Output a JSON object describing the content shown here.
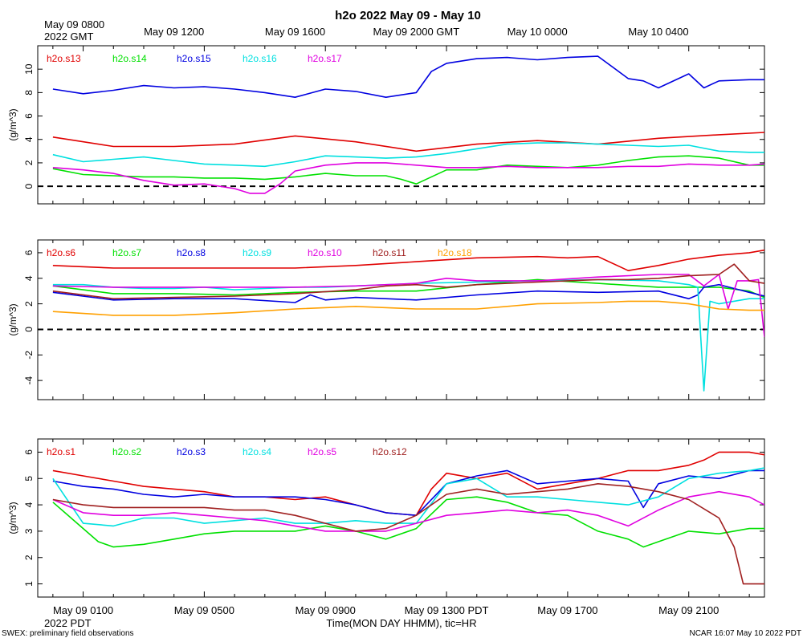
{
  "chart_data": {
    "type": "line",
    "title": "h2o 2022 May 09 - May 10",
    "xlabel": "Time(MON DAY HHMM), tic=HR",
    "footer_left": "SWEX: preliminary field observations",
    "footer_right": "NCAR 16:07 May 10 2022 PDT",
    "x_range_hours": [
      -0.5,
      23.5
    ],
    "top_axis": {
      "ticks": [
        {
          "label": "May 09 0800",
          "h": 0
        },
        {
          "label": "May 09 1200",
          "h": 4
        },
        {
          "label": "May 09 1600",
          "h": 8
        },
        {
          "label": "May 09 2000 GMT",
          "h": 12
        },
        {
          "label": "May 10 0000",
          "h": 16
        },
        {
          "label": "May 10 0400",
          "h": 20
        }
      ],
      "sublabel": "2022 GMT"
    },
    "bottom_axis": {
      "ticks": [
        {
          "label": "May 09 0100",
          "h": 1
        },
        {
          "label": "May 09 0500",
          "h": 5
        },
        {
          "label": "May 09 0900",
          "h": 9
        },
        {
          "label": "May 09 1300 PDT",
          "h": 13
        },
        {
          "label": "May 09 1700",
          "h": 17
        },
        {
          "label": "May 09 2100",
          "h": 21
        }
      ],
      "sublabel": "2022 PDT"
    },
    "panels": [
      {
        "ylabel": "(g/m^3)",
        "ylim": [
          -1.5,
          12
        ],
        "yticks": [
          0,
          2,
          4,
          6,
          8,
          10
        ],
        "zero_line": true,
        "series": [
          {
            "name": "h2o.s13",
            "color": "#e00000",
            "h": [
              0,
              2,
              4,
              6,
              8,
              10,
              12,
              14,
              16,
              18,
              20,
              22,
              23.5
            ],
            "v": [
              4.2,
              3.4,
              3.4,
              3.6,
              4.3,
              3.8,
              3.0,
              3.6,
              3.9,
              3.6,
              4.1,
              4.4,
              4.6
            ]
          },
          {
            "name": "h2o.s14",
            "color": "#00e000",
            "h": [
              0,
              1,
              2,
              3,
              4,
              5,
              6,
              7,
              8,
              9,
              10,
              11,
              11.5,
              12,
              13,
              14,
              15,
              16,
              17,
              18,
              19,
              20,
              21,
              22,
              23,
              23.5
            ],
            "v": [
              1.5,
              1.0,
              0.9,
              0.8,
              0.8,
              0.7,
              0.7,
              0.6,
              0.8,
              1.1,
              0.9,
              0.9,
              0.6,
              0.2,
              1.4,
              1.4,
              1.8,
              1.7,
              1.6,
              1.8,
              2.2,
              2.5,
              2.6,
              2.4,
              1.8,
              1.8
            ]
          },
          {
            "name": "h2o.s15",
            "color": "#0000e0",
            "h": [
              0,
              1,
              2,
              3,
              4,
              5,
              6,
              7,
              8,
              9,
              10,
              11,
              12,
              12.5,
              13,
              14,
              15,
              16,
              17,
              18,
              19,
              19.5,
              20,
              21,
              21.5,
              22,
              23,
              23.5
            ],
            "v": [
              8.3,
              7.9,
              8.2,
              8.6,
              8.4,
              8.5,
              8.3,
              8.0,
              7.6,
              8.3,
              8.1,
              7.6,
              8.0,
              9.8,
              10.5,
              10.9,
              11.0,
              10.8,
              11.0,
              11.1,
              9.2,
              9.0,
              8.4,
              9.6,
              8.4,
              9.0,
              9.1,
              9.1
            ]
          },
          {
            "name": "h2o.s16",
            "color": "#00e0e0",
            "h": [
              0,
              1,
              2,
              3,
              4,
              5,
              6,
              7,
              8,
              9,
              10,
              11,
              12,
              13,
              14,
              15,
              16,
              17,
              18,
              19,
              20,
              21,
              22,
              23,
              23.5
            ],
            "v": [
              2.7,
              2.1,
              2.3,
              2.5,
              2.2,
              1.9,
              1.8,
              1.7,
              2.1,
              2.6,
              2.5,
              2.4,
              2.5,
              2.8,
              3.2,
              3.6,
              3.7,
              3.7,
              3.6,
              3.5,
              3.4,
              3.5,
              3.0,
              2.9,
              2.9
            ]
          },
          {
            "name": "h2o.s17",
            "color": "#e000e0",
            "h": [
              0,
              1,
              2,
              3,
              4,
              5,
              6,
              6.5,
              7,
              7.5,
              8,
              9,
              10,
              11,
              12,
              13,
              14,
              15,
              16,
              17,
              18,
              19,
              20,
              21,
              22,
              23,
              23.5
            ],
            "v": [
              1.6,
              1.4,
              1.1,
              0.5,
              0.1,
              0.2,
              -0.2,
              -0.6,
              -0.6,
              0.2,
              1.3,
              1.8,
              2.0,
              2.0,
              1.8,
              1.6,
              1.6,
              1.7,
              1.6,
              1.6,
              1.6,
              1.7,
              1.7,
              1.9,
              1.8,
              1.8,
              1.9
            ]
          }
        ]
      },
      {
        "ylabel": "(g/m^3)",
        "ylim": [
          -5.5,
          7
        ],
        "yticks": [
          -4,
          -2,
          0,
          2,
          4,
          6
        ],
        "zero_line": true,
        "series": [
          {
            "name": "h2o.s6",
            "color": "#e00000",
            "h": [
              0,
              2,
              4,
              6,
              8,
              10,
              12,
              14,
              16,
              17,
              18,
              19,
              20,
              21,
              22,
              23,
              23.5
            ],
            "v": [
              5.0,
              4.8,
              4.8,
              4.8,
              4.8,
              5.0,
              5.3,
              5.6,
              5.7,
              5.6,
              5.7,
              4.6,
              5.0,
              5.5,
              5.8,
              6.0,
              6.2
            ]
          },
          {
            "name": "h2o.s7",
            "color": "#00e000",
            "h": [
              0,
              2,
              4,
              6,
              8,
              10,
              12,
              14,
              16,
              18,
              20,
              22,
              23,
              23.5
            ],
            "v": [
              3.4,
              2.8,
              2.8,
              2.7,
              2.9,
              3.0,
              3.0,
              3.5,
              3.9,
              3.6,
              3.3,
              3.3,
              3.0,
              2.5
            ]
          },
          {
            "name": "h2o.s8",
            "color": "#0000e0",
            "h": [
              0,
              2,
              4,
              6,
              8,
              8.5,
              9,
              10,
              12,
              14,
              16,
              18,
              20,
              21,
              21.3,
              21.5,
              22,
              22.5,
              23,
              23.5
            ],
            "v": [
              2.9,
              2.3,
              2.4,
              2.4,
              2.1,
              2.7,
              2.3,
              2.5,
              2.3,
              2.7,
              3.0,
              2.9,
              3.0,
              2.4,
              2.7,
              3.3,
              3.5,
              3.2,
              2.9,
              2.6
            ]
          },
          {
            "name": "h2o.s9",
            "color": "#00e0e0",
            "h": [
              0,
              1,
              2,
              3,
              4,
              5,
              6,
              7,
              8,
              9,
              10,
              12,
              14,
              16,
              18,
              20,
              21,
              21.3,
              21.5,
              21.7,
              22,
              23,
              23.5
            ],
            "v": [
              3.5,
              3.5,
              3.3,
              3.2,
              3.2,
              3.3,
              3.1,
              3.2,
              3.3,
              3.3,
              3.4,
              3.6,
              3.7,
              3.8,
              3.9,
              3.8,
              3.5,
              3.3,
              -4.8,
              2.2,
              2.0,
              2.4,
              2.4
            ]
          },
          {
            "name": "h2o.s10",
            "color": "#e000e0",
            "h": [
              0,
              2,
              4,
              6,
              8,
              10,
              12,
              13,
              14,
              16,
              18,
              20,
              21,
              21.5,
              22,
              22.3,
              22.6,
              23,
              23.3,
              23.5
            ],
            "v": [
              3.4,
              3.3,
              3.3,
              3.3,
              3.3,
              3.4,
              3.6,
              4.0,
              3.8,
              3.8,
              4.1,
              4.3,
              4.3,
              3.4,
              4.3,
              1.6,
              3.8,
              3.8,
              3.9,
              -0.6
            ]
          },
          {
            "name": "h2o.s11",
            "color": "#a02020",
            "h": [
              0,
              2,
              4,
              6,
              8,
              10,
              11,
              12,
              13,
              14,
              15,
              16,
              17,
              18,
              19,
              20,
              21,
              22,
              22.5,
              23,
              23.5
            ],
            "v": [
              3.0,
              2.4,
              2.5,
              2.6,
              2.8,
              3.1,
              3.4,
              3.5,
              3.3,
              3.5,
              3.6,
              3.7,
              3.8,
              3.9,
              3.9,
              4.0,
              4.2,
              4.3,
              5.1,
              3.8,
              3.6
            ]
          },
          {
            "name": "h2o.s18",
            "color": "#ffa000",
            "h": [
              0,
              2,
              4,
              6,
              8,
              10,
              12,
              14,
              16,
              18,
              19,
              20,
              21,
              22,
              23,
              23.5
            ],
            "v": [
              1.4,
              1.1,
              1.1,
              1.3,
              1.6,
              1.8,
              1.6,
              1.6,
              2.0,
              2.1,
              2.2,
              2.2,
              2.0,
              1.6,
              1.5,
              1.5
            ]
          }
        ]
      },
      {
        "ylabel": "(g/m^3)",
        "ylim": [
          0.5,
          6.5
        ],
        "yticks": [
          1,
          2,
          3,
          4,
          5,
          6
        ],
        "zero_line": false,
        "series": [
          {
            "name": "h2o.s1",
            "color": "#e00000",
            "h": [
              0,
              1,
              2,
              3,
              4,
              5,
              6,
              7,
              8,
              9,
              10,
              11,
              12,
              12.5,
              13,
              14,
              15,
              16,
              17,
              18,
              19,
              20,
              21,
              21.5,
              22,
              23,
              23.5
            ],
            "v": [
              5.3,
              5.1,
              4.9,
              4.7,
              4.6,
              4.5,
              4.3,
              4.3,
              4.2,
              4.3,
              4.0,
              3.7,
              3.6,
              4.6,
              5.2,
              5.0,
              5.2,
              4.6,
              4.8,
              5.0,
              5.3,
              5.3,
              5.5,
              5.7,
              6.0,
              6.0,
              5.9
            ]
          },
          {
            "name": "h2o.s2",
            "color": "#00e000",
            "h": [
              0,
              1,
              1.5,
              2,
              3,
              4,
              5,
              6,
              7,
              8,
              9,
              10,
              11,
              12,
              13,
              14,
              15,
              16,
              17,
              18,
              19,
              19.5,
              20,
              21,
              22,
              23,
              23.5
            ],
            "v": [
              4.1,
              3.1,
              2.6,
              2.4,
              2.5,
              2.7,
              2.9,
              3.0,
              3.0,
              3.0,
              3.2,
              3.0,
              2.7,
              3.1,
              4.2,
              4.3,
              4.1,
              3.7,
              3.6,
              3.0,
              2.7,
              2.4,
              2.6,
              3.0,
              2.9,
              3.1,
              3.1
            ]
          },
          {
            "name": "h2o.s3",
            "color": "#0000e0",
            "h": [
              0,
              1,
              2,
              3,
              4,
              5,
              6,
              7,
              8,
              9,
              10,
              11,
              12,
              13,
              14,
              15,
              16,
              17,
              18,
              19,
              19.5,
              20,
              21,
              22,
              23,
              23.5
            ],
            "v": [
              4.9,
              4.7,
              4.6,
              4.4,
              4.3,
              4.4,
              4.3,
              4.3,
              4.3,
              4.2,
              4.0,
              3.7,
              3.6,
              4.8,
              5.1,
              5.3,
              4.8,
              4.9,
              5.0,
              4.9,
              3.9,
              4.8,
              5.1,
              5.0,
              5.3,
              5.3
            ]
          },
          {
            "name": "h2o.s4",
            "color": "#00e0e0",
            "h": [
              0,
              1,
              2,
              3,
              4,
              5,
              6,
              7,
              8,
              9,
              10,
              11,
              12,
              13,
              14,
              15,
              16,
              17,
              18,
              19,
              20,
              21,
              22,
              23,
              23.5
            ],
            "v": [
              5.0,
              3.3,
              3.2,
              3.5,
              3.5,
              3.3,
              3.4,
              3.5,
              3.3,
              3.3,
              3.4,
              3.3,
              3.3,
              4.8,
              5.0,
              4.3,
              4.3,
              4.2,
              4.1,
              4.0,
              4.3,
              5.0,
              5.2,
              5.3,
              5.4
            ]
          },
          {
            "name": "h2o.s5",
            "color": "#e000e0",
            "h": [
              0,
              1,
              2,
              3,
              4,
              5,
              6,
              7,
              8,
              9,
              10,
              11,
              12,
              13,
              14,
              15,
              16,
              17,
              18,
              19,
              20,
              21,
              22,
              23,
              23.5
            ],
            "v": [
              4.2,
              3.7,
              3.6,
              3.6,
              3.7,
              3.6,
              3.5,
              3.4,
              3.2,
              3.0,
              3.0,
              3.0,
              3.3,
              3.6,
              3.7,
              3.8,
              3.7,
              3.8,
              3.6,
              3.2,
              3.8,
              4.3,
              4.5,
              4.3,
              4.0
            ]
          },
          {
            "name": "h2o.s12",
            "color": "#a02020",
            "h": [
              0,
              1,
              2,
              3,
              4,
              5,
              6,
              7,
              8,
              9,
              10,
              11,
              12,
              13,
              14,
              15,
              16,
              17,
              18,
              19,
              20,
              21,
              22,
              22.5,
              22.8,
              23,
              23.5
            ],
            "v": [
              4.2,
              4.0,
              3.9,
              3.9,
              3.9,
              3.9,
              3.8,
              3.8,
              3.6,
              3.3,
              3.0,
              3.1,
              3.6,
              4.4,
              4.6,
              4.4,
              4.5,
              4.6,
              4.8,
              4.7,
              4.5,
              4.2,
              3.5,
              2.4,
              1.0,
              1.0,
              1.0
            ]
          }
        ]
      }
    ]
  }
}
